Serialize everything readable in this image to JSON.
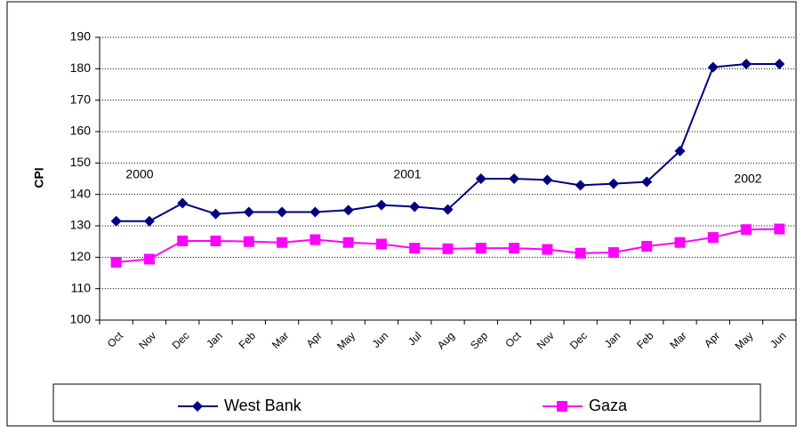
{
  "chart_data": {
    "type": "line",
    "y_label": "CPI",
    "categories": [
      "Oct",
      "Nov",
      "Dec",
      "Jan",
      "Feb",
      "Mar",
      "Apr",
      "May",
      "Jun",
      "Jul",
      "Aug",
      "Sep",
      "Oct",
      "Nov",
      "Dec",
      "Jan",
      "Feb",
      "Mar",
      "Apr",
      "May",
      "Jun"
    ],
    "series": [
      {
        "name": "West Bank",
        "color": "#000080",
        "marker": "diamond",
        "values": [
          131.5,
          131.5,
          137.2,
          133.8,
          134.4,
          134.4,
          134.4,
          135,
          136.6,
          136.1,
          135.2,
          145,
          145,
          144.6,
          142.9,
          143.4,
          144,
          153.8,
          180.5,
          181.5,
          181.5
        ]
      },
      {
        "name": "Gaza",
        "color": "#ff00ff",
        "marker": "square",
        "values": [
          118.4,
          119.4,
          125.2,
          125.2,
          125,
          124.7,
          125.6,
          124.7,
          124.2,
          122.9,
          122.7,
          122.9,
          122.9,
          122.5,
          121.3,
          121.5,
          123.5,
          124.7,
          126.3,
          128.8,
          129
        ]
      }
    ],
    "annotations": [
      "2000",
      "2001",
      "2002"
    ],
    "ylim": [
      100,
      190
    ],
    "yticks": [
      100,
      110,
      120,
      130,
      140,
      150,
      160,
      170,
      180,
      190
    ],
    "grid": true
  }
}
